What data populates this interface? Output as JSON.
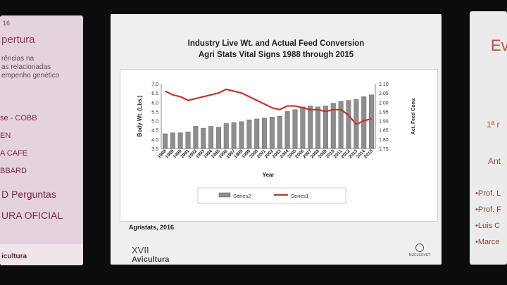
{
  "left_panel": {
    "year": "16",
    "title": "pertura",
    "subtitle_lines": [
      "rências na",
      "as relacionadas",
      "empenho genético"
    ],
    "items": [
      "se - COBB",
      "EN",
      "A CAFE",
      "BBARD"
    ],
    "line_perguntas": "D Perguntas",
    "line_oficial": "URA OFICIAL",
    "footer": "icultura"
  },
  "slide": {
    "title_line1": "Industry Live Wt. and Actual Feed Conversion",
    "title_line2": "Agri Stats Vital Signs 1988 through 2015",
    "credit": "Agristats, 2016",
    "logo_left_top": "XVII",
    "logo_left_bottom": "Avicultura",
    "logo_right": "NUCLEOVET"
  },
  "chart_data": {
    "type": "bar",
    "categories": [
      "1988",
      "1989",
      "1990",
      "1991",
      "1992",
      "1993",
      "1994",
      "1995",
      "1996",
      "1997",
      "1998",
      "1999",
      "2000",
      "2001",
      "2002",
      "2003",
      "2004",
      "2005",
      "2006",
      "2007",
      "2008",
      "2009",
      "2010",
      "2011",
      "2012",
      "2013",
      "2014",
      "2015"
    ],
    "series": [
      {
        "name": "Series2",
        "type": "bar",
        "axis": "left",
        "values": [
          4.3,
          4.35,
          4.35,
          4.4,
          4.7,
          4.6,
          4.7,
          4.65,
          4.85,
          4.9,
          4.95,
          5.05,
          5.1,
          5.15,
          5.2,
          5.25,
          5.5,
          5.6,
          5.75,
          5.8,
          5.75,
          5.8,
          5.95,
          6.05,
          6.1,
          6.15,
          6.3,
          6.4
        ]
      },
      {
        "name": "Series1",
        "type": "line",
        "axis": "right",
        "values": [
          2.06,
          2.04,
          2.03,
          2.01,
          2.02,
          2.03,
          2.04,
          2.05,
          2.07,
          2.06,
          2.05,
          2.03,
          2.01,
          1.99,
          1.97,
          1.96,
          1.98,
          1.98,
          1.97,
          1.96,
          1.96,
          1.95,
          1.96,
          1.96,
          1.93,
          1.88,
          1.9,
          1.91
        ]
      }
    ],
    "xlabel": "Year",
    "ylabel": "Body Wt. (Lbs.)",
    "y2label": "Act. Feed Conv.",
    "ylim": [
      3.5,
      7.0
    ],
    "y_ticks": [
      "3.5",
      "4.0",
      "4.5",
      "5.0",
      "5.5",
      "6.0",
      "6.5",
      "7.0"
    ],
    "y2lim": [
      1.75,
      2.1
    ],
    "y2_ticks": [
      "1.75",
      "1.80",
      "1.85",
      "1.90",
      "1.95",
      "2.00",
      "2.05",
      "2.10"
    ],
    "legend_position": "bottom",
    "colors": {
      "bar": "#8e8e8e",
      "line": "#c0362c"
    }
  },
  "right_panel": {
    "title": "Ev",
    "line_a": "1ª r",
    "line_b": "Ant",
    "names": [
      "•Prof. L",
      "•Prof. F",
      "•Luis C",
      "•Marce"
    ]
  }
}
